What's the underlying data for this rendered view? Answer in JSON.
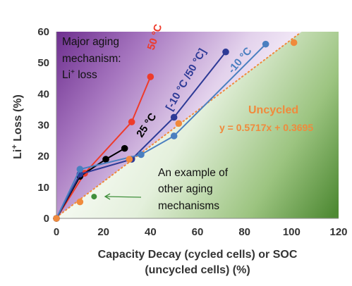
{
  "chart_data": {
    "type": "scatter",
    "xlabel_line1": "Capacity Decay (cycled cells) or SOC",
    "xlabel_line2": "(uncycled cells) (%)",
    "ylabel_main": "Li",
    "ylabel_sup": "+",
    "ylabel_rest": " Loss (%)",
    "xlim": [
      0,
      120
    ],
    "ylim": [
      0,
      60
    ],
    "xticks": [
      0,
      20,
      40,
      60,
      80,
      100,
      120
    ],
    "yticks": [
      0,
      10,
      20,
      30,
      40,
      50,
      60
    ],
    "grid": false,
    "series": [
      {
        "name": "50 °C",
        "color": "#ee3b2b",
        "points": [
          [
            0,
            0
          ],
          [
            12,
            14.5
          ],
          [
            32,
            31
          ],
          [
            40,
            45.5
          ]
        ]
      },
      {
        "name": "25 °C",
        "color": "#000000",
        "points": [
          [
            0,
            0
          ],
          [
            10,
            13.5
          ],
          [
            21,
            19
          ],
          [
            29,
            22.5
          ]
        ]
      },
      {
        "name": "[-10 °C /50 °C]",
        "color": "#2d3a96",
        "points": [
          [
            0,
            0
          ],
          [
            10,
            14.2
          ],
          [
            32,
            19
          ],
          [
            50,
            32.5
          ],
          [
            72,
            53.5
          ]
        ]
      },
      {
        "name": "-10 °C",
        "color": "#4a7fc0",
        "points": [
          [
            0,
            0
          ],
          [
            10,
            15.8
          ],
          [
            36,
            20.5
          ],
          [
            50,
            26.5
          ],
          [
            89,
            56
          ]
        ]
      },
      {
        "name": "Uncycled",
        "color": "#f08a3c",
        "points": [
          [
            0,
            0
          ],
          [
            10,
            5.3
          ],
          [
            31,
            19
          ],
          [
            52,
            30.5
          ],
          [
            101,
            56.5
          ]
        ],
        "fit_line": {
          "slope": 0.5717,
          "intercept": 0.3695,
          "x_range": [
            0,
            103
          ],
          "style": "dotted"
        },
        "fit_label": "y = 0.5717x + 0.3695"
      }
    ],
    "other_point": {
      "x": 16,
      "y": 7,
      "color": "#3f8f3a"
    },
    "annotations": {
      "li_loss_line1": "Major aging",
      "li_loss_line2": "mechanism:",
      "li_loss_line3_main": "Li",
      "li_loss_line3_sup": "+",
      "li_loss_line3_rest": " loss",
      "uncycled_label": "Uncycled",
      "other_line1": "An example of",
      "other_line2": "other aging",
      "other_line3": "mechanisms"
    },
    "colors": {
      "region_top_left": "#6e2f8f",
      "region_bottom_right": "#4f8a34",
      "uncycled_text": "#f08a3c"
    }
  }
}
